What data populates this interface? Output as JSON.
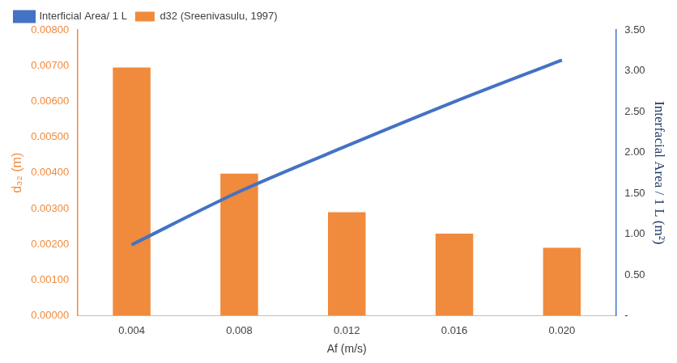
{
  "chart_data": {
    "type": "bar",
    "categories": [
      "0.004",
      "0.008",
      "0.012",
      "0.016",
      "0.020"
    ],
    "x_label": "Af (m/s)",
    "y_label": "d₃₂ (m)",
    "y2_label": "Interfacial Area / 1 L (m²)",
    "series": [
      {
        "name": "d32 (Sreenivasulu, 1997)",
        "type": "bar",
        "color": "#F08A3C",
        "values": [
          0.00695,
          0.00398,
          0.0029,
          0.0023,
          0.0019
        ]
      },
      {
        "name": "Interficial Area/ 1 L",
        "type": "line",
        "color": "#4472C4",
        "axis": "y2",
        "values": [
          0.87,
          1.52,
          2.08,
          2.62,
          3.13
        ]
      }
    ],
    "ylim": [
      0,
      0.008
    ],
    "yticks": [
      {
        "value": 0,
        "label": "0.00000"
      },
      {
        "value": 0.001,
        "label": "0.00100"
      },
      {
        "value": 0.002,
        "label": "0.00200"
      },
      {
        "value": 0.003,
        "label": "0.00300"
      },
      {
        "value": 0.004,
        "label": "0.00400"
      },
      {
        "value": 0.005,
        "label": "0.00500"
      },
      {
        "value": 0.006,
        "label": "0.00600"
      },
      {
        "value": 0.007,
        "label": "0.00700"
      },
      {
        "value": 0.008,
        "label": "0.00800"
      }
    ],
    "y2lim": [
      0,
      3.5
    ],
    "y2ticks": [
      {
        "value": 0,
        "label": "-"
      },
      {
        "value": 0.5,
        "label": "0.50"
      },
      {
        "value": 1,
        "label": "1.00"
      },
      {
        "value": 1.5,
        "label": "1.50"
      },
      {
        "value": 2,
        "label": "2.00"
      },
      {
        "value": 2.5,
        "label": "2.50"
      },
      {
        "value": 3,
        "label": "3.00"
      },
      {
        "value": 3.5,
        "label": "3.50"
      }
    ],
    "grid": false,
    "legend": "top-left"
  }
}
